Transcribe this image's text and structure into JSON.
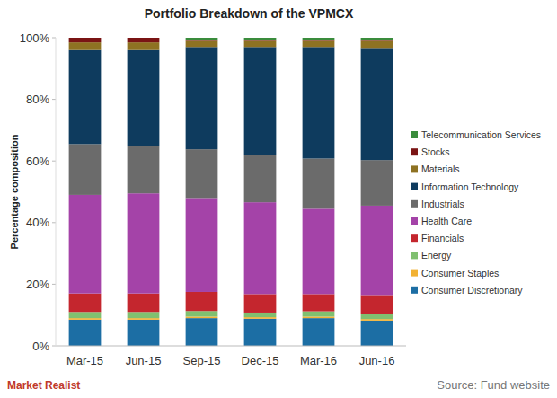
{
  "chart_data": {
    "type": "bar",
    "stacked": true,
    "title": "Portfolio Breakdown of the VPMCX",
    "y_label": "Percentage composition",
    "source": "Source: Fund website",
    "brand": "Market Realist",
    "categories": [
      "Mar-15",
      "Jun-15",
      "Sep-15",
      "Dec-15",
      "Mar-16",
      "Jun-16"
    ],
    "ylim": [
      0,
      100
    ],
    "yticks": [
      {
        "value": 0,
        "label": "0%"
      },
      {
        "value": 20,
        "label": "20%"
      },
      {
        "value": 40,
        "label": "40%"
      },
      {
        "value": 60,
        "label": "60%"
      },
      {
        "value": 80,
        "label": "80%"
      },
      {
        "value": 100,
        "label": "100%"
      }
    ],
    "grid": false,
    "legend": "right",
    "series": [
      {
        "name": "Consumer Discretionary",
        "color": "#1c6ea4",
        "values": [
          8.5,
          8.5,
          9,
          8.8,
          9,
          8.2
        ]
      },
      {
        "name": "Consumer Staples",
        "color": "#f2b233",
        "values": [
          0.5,
          0.5,
          0.5,
          0.5,
          0.5,
          0.5
        ]
      },
      {
        "name": "Energy",
        "color": "#80c070",
        "values": [
          2,
          2,
          1.8,
          1.5,
          1.7,
          1.8
        ]
      },
      {
        "name": "Financials",
        "color": "#c4262e",
        "values": [
          6,
          6,
          6.2,
          6,
          5.6,
          6
        ]
      },
      {
        "name": "Health Care",
        "color": "#a443a8",
        "values": [
          32,
          32.5,
          30.5,
          29.8,
          27.7,
          29
        ]
      },
      {
        "name": "Industrials",
        "color": "#6b6b6b",
        "values": [
          16.5,
          15.3,
          15.8,
          15.4,
          16.3,
          14.8
        ]
      },
      {
        "name": "Information Technology",
        "color": "#0e3b5e",
        "values": [
          30.5,
          31.2,
          33.2,
          35,
          36.2,
          36.4
        ]
      },
      {
        "name": "Materials",
        "color": "#8e7222",
        "values": [
          2.5,
          2.5,
          2,
          2,
          2,
          2.3
        ]
      },
      {
        "name": "Stocks",
        "color": "#7a1414",
        "values": [
          1.5,
          1.5,
          0.3,
          0.2,
          0.3,
          0.3
        ]
      },
      {
        "name": "Telecommunication Services",
        "color": "#3a8c3c",
        "values": [
          0,
          0,
          0.7,
          0.8,
          0.7,
          0.7
        ]
      }
    ]
  }
}
